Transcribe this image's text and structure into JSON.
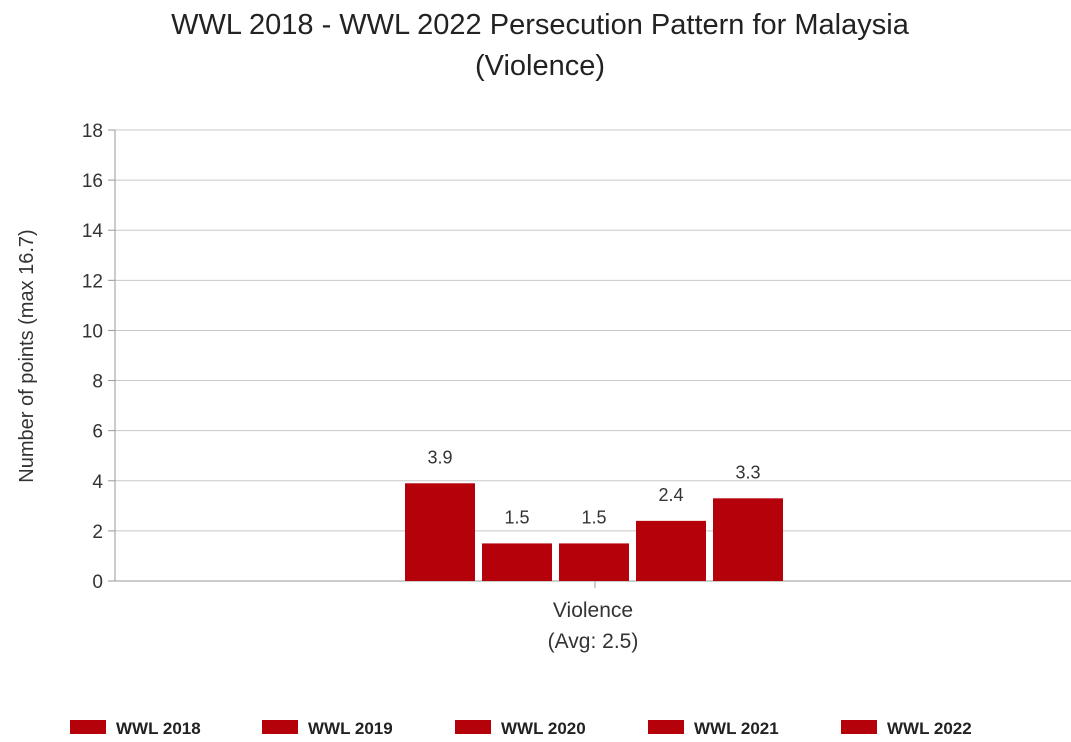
{
  "chart_data": {
    "type": "bar",
    "title_lines": [
      "WWL 2018 - WWL 2022 Persecution Pattern for Malaysia",
      "(Violence)"
    ],
    "ylabel": "Number of points (max 16.7)",
    "ylim": [
      0,
      18
    ],
    "y_ticks": [
      "0",
      "2",
      "4",
      "6",
      "8",
      "10",
      "12",
      "14",
      "16",
      "18"
    ],
    "grid": true,
    "categories": [
      "Violence"
    ],
    "category_sublabel": "(Avg: 2.5)",
    "series": [
      {
        "name": "WWL 2018",
        "values": [
          3.9
        ],
        "label": "3.9"
      },
      {
        "name": "WWL 2019",
        "values": [
          1.5
        ],
        "label": "1.5"
      },
      {
        "name": "WWL 2020",
        "values": [
          1.5
        ],
        "label": "1.5"
      },
      {
        "name": "WWL 2021",
        "values": [
          2.4
        ],
        "label": "2.4"
      },
      {
        "name": "WWL 2022",
        "values": [
          3.3
        ],
        "label": "3.3"
      }
    ],
    "bar_color": "#b5020a",
    "legend_position": "bottom"
  }
}
